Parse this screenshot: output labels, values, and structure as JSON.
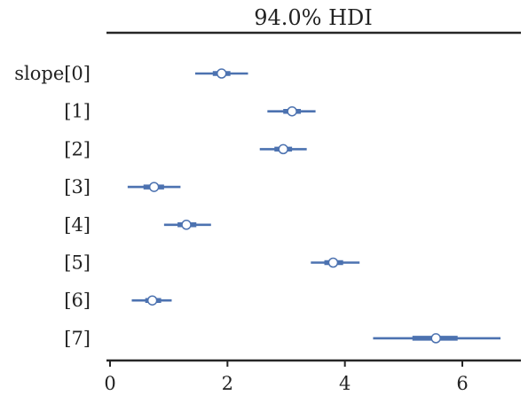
{
  "chart_data": {
    "type": "forest",
    "title": "94.0% HDI",
    "series_color": "#4c72b0",
    "xlim": [
      -0.1,
      7.0
    ],
    "xticks": [
      0,
      2,
      4,
      6
    ],
    "xtick_labels": [
      "0",
      "2",
      "4",
      "6"
    ],
    "items": [
      {
        "label": "slope[0]",
        "mean": 1.9,
        "hdi": [
          1.45,
          2.35
        ],
        "iqr": [
          1.75,
          2.05
        ]
      },
      {
        "label": "[1]",
        "mean": 3.1,
        "hdi": [
          2.68,
          3.5
        ],
        "iqr": [
          2.95,
          3.25
        ]
      },
      {
        "label": "[2]",
        "mean": 2.95,
        "hdi": [
          2.55,
          3.35
        ],
        "iqr": [
          2.8,
          3.1
        ]
      },
      {
        "label": "[3]",
        "mean": 0.75,
        "hdi": [
          0.3,
          1.2
        ],
        "iqr": [
          0.57,
          0.92
        ]
      },
      {
        "label": "[4]",
        "mean": 1.3,
        "hdi": [
          0.92,
          1.72
        ],
        "iqr": [
          1.15,
          1.47
        ]
      },
      {
        "label": "[5]",
        "mean": 3.8,
        "hdi": [
          3.42,
          4.25
        ],
        "iqr": [
          3.65,
          3.97
        ]
      },
      {
        "label": "[6]",
        "mean": 0.72,
        "hdi": [
          0.37,
          1.05
        ],
        "iqr": [
          0.6,
          0.87
        ]
      },
      {
        "label": "[7]",
        "mean": 5.55,
        "hdi": [
          4.48,
          6.65
        ],
        "iqr": [
          5.15,
          5.92
        ]
      }
    ]
  }
}
